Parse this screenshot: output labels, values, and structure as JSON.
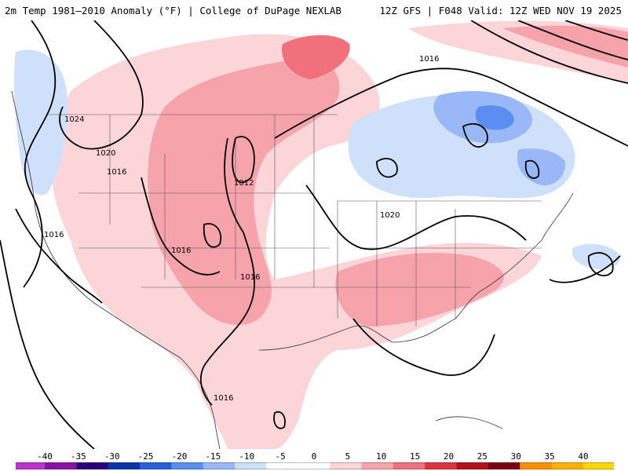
{
  "header": {
    "left_title": "2m Temp 1981–2010 Anomaly (°F) | College of DuPage NEXLAB",
    "right_title": "12Z GFS | F048 Valid: 12Z WED NOV 19 2025"
  },
  "map": {
    "isobar_labels": [
      "1016",
      "1024",
      "1020",
      "1016",
      "1012",
      "1016",
      "1016",
      "1016",
      "1020",
      "1016"
    ]
  },
  "colorbar": {
    "ticks": [
      "-40",
      "-35",
      "-30",
      "-25",
      "-20",
      "-15",
      "-10",
      "-5",
      "0",
      "5",
      "10",
      "15",
      "20",
      "25",
      "30",
      "35",
      "40"
    ],
    "colors": [
      "#e377e3",
      "#bb33cc",
      "#8a11a6",
      "#26007f",
      "#0a35a8",
      "#2a5fd9",
      "#5b8ef0",
      "#9ab8f7",
      "#cfe0fb",
      "#ffffff",
      "#ffffff",
      "#fcd5d8",
      "#f7a3ab",
      "#f0707c",
      "#dd3340",
      "#b2101d",
      "#7d0010",
      "#ff8f00",
      "#ffb300",
      "#ffd800",
      "#e0e0e0"
    ]
  }
}
